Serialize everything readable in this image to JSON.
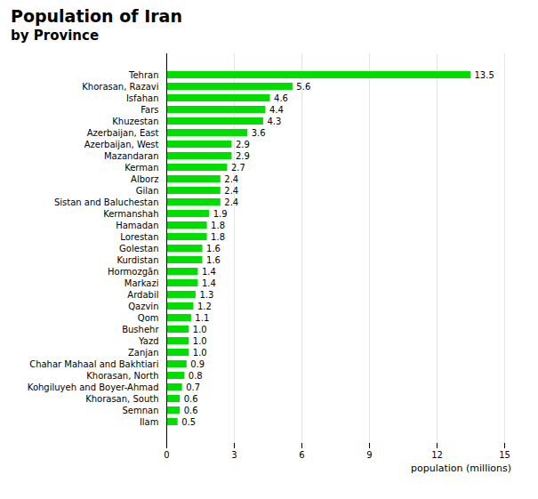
{
  "chart_data": {
    "type": "bar",
    "orientation": "horizontal",
    "title": "Population of Iran",
    "subtitle": "by Province",
    "xlabel": "population (millions)",
    "categories": [
      "Tehran",
      "Khorasan, Razavi",
      "Isfahan",
      "Fars",
      "Khuzestan",
      "Azerbaijan, East",
      "Azerbaijan, West",
      "Mazandaran",
      "Kerman",
      "Alborz",
      "Gilan",
      "Sistan and Baluchestan",
      "Kermanshah",
      "Hamadan",
      "Lorestan",
      "Golestan",
      "Kurdistan",
      "Hormozgān",
      "Markazi",
      "Ardabil",
      "Qazvin",
      "Qom",
      "Bushehr",
      "Yazd",
      "Zanjan",
      "Chahar Mahaal and Bakhtiari",
      "Khorasan, North",
      "Kohgiluyeh and Boyer-Ahmad",
      "Khorasan, South",
      "Semnan",
      "Ilam"
    ],
    "values": [
      13.5,
      5.6,
      4.6,
      4.4,
      4.3,
      3.6,
      2.9,
      2.9,
      2.7,
      2.4,
      2.4,
      2.4,
      1.9,
      1.8,
      1.8,
      1.6,
      1.6,
      1.4,
      1.4,
      1.3,
      1.2,
      1.1,
      1.0,
      1.0,
      1.0,
      0.9,
      0.8,
      0.7,
      0.6,
      0.6,
      0.5
    ],
    "value_labels": [
      "13.5",
      "5.6",
      "4.6",
      "4.4",
      "4.3",
      "3.6",
      "2.9",
      "2.9",
      "2.7",
      "2.4",
      "2.4",
      "2.4",
      "1.9",
      "1.8",
      "1.8",
      "1.6",
      "1.6",
      "1.4",
      "1.4",
      "1.3",
      "1.2",
      "1.1",
      "1.0",
      "1.0",
      "1.0",
      "0.9",
      "0.8",
      "0.7",
      "0.6",
      "0.6",
      "0.5"
    ],
    "color": "#00dd00",
    "xlim": [
      0,
      15
    ],
    "xticks": [
      0,
      3,
      6,
      9,
      12,
      15
    ],
    "grid": true,
    "data_labels": true
  }
}
